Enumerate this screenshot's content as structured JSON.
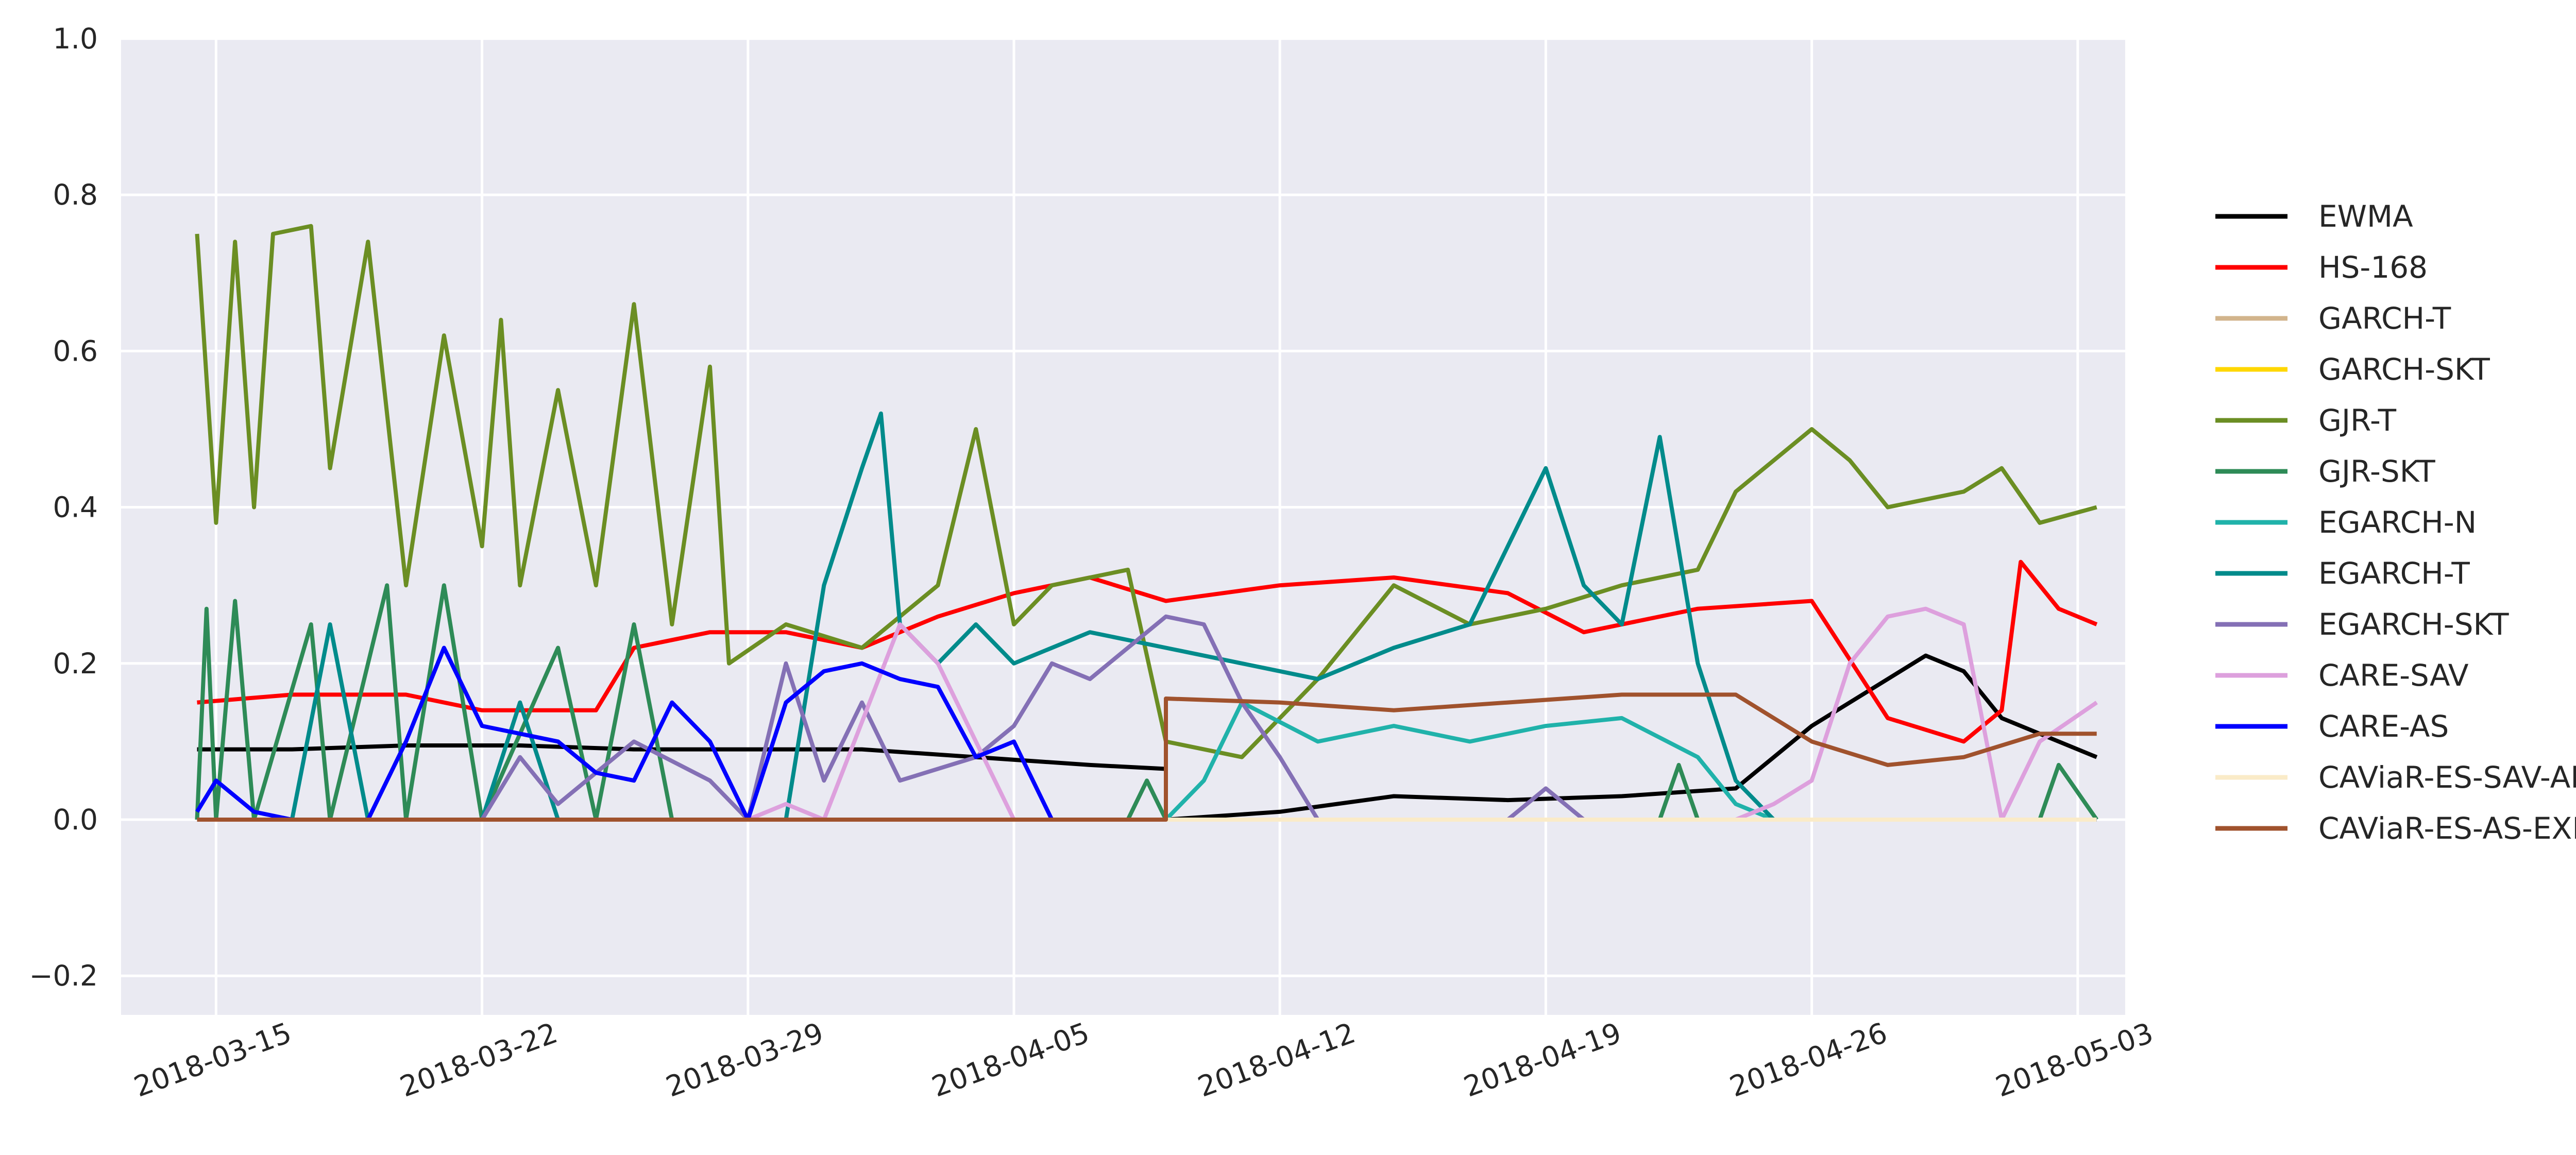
{
  "chart_data": {
    "type": "line",
    "title": "",
    "xlabel": "",
    "ylabel": "",
    "x_range": [
      "2018-03-12T12:00",
      "2018-05-04T06:00"
    ],
    "ylim": [
      -0.25,
      1.0
    ],
    "grid": true,
    "legend_position": "right",
    "x_ticks": [
      "2018-03-15",
      "2018-03-22",
      "2018-03-29",
      "2018-04-05",
      "2018-04-12",
      "2018-04-19",
      "2018-04-26",
      "2018-05-03"
    ],
    "y_ticks": [
      -0.2,
      0.0,
      0.2,
      0.4,
      0.6,
      0.8,
      1.0
    ],
    "y_tick_labels": [
      "−0.2",
      "0.0",
      "0.2",
      "0.4",
      "0.6",
      "0.8",
      "1.0"
    ],
    "series": [
      {
        "name": "EWMA",
        "color": "#000000",
        "points": [
          [
            "2018-03-14T12:00",
            0.09
          ],
          [
            "2018-03-17T00:00",
            0.09
          ],
          [
            "2018-03-20T00:00",
            0.095
          ],
          [
            "2018-03-23T00:00",
            0.095
          ],
          [
            "2018-03-26T00:00",
            0.09
          ],
          [
            "2018-03-29T00:00",
            0.09
          ],
          [
            "2018-04-01T00:00",
            0.09
          ],
          [
            "2018-04-04T00:00",
            0.08
          ],
          [
            "2018-04-07T00:00",
            0.07
          ],
          [
            "2018-04-09T00:00",
            0.065
          ],
          [
            "2018-04-09T00:00",
            0.0
          ],
          [
            "2018-04-12T00:00",
            0.01
          ],
          [
            "2018-04-15T00:00",
            0.03
          ],
          [
            "2018-04-18T00:00",
            0.025
          ],
          [
            "2018-04-21T00:00",
            0.03
          ],
          [
            "2018-04-24T00:00",
            0.04
          ],
          [
            "2018-04-26T00:00",
            0.12
          ],
          [
            "2018-04-28T00:00",
            0.18
          ],
          [
            "2018-04-29T00:00",
            0.21
          ],
          [
            "2018-04-30T00:00",
            0.19
          ],
          [
            "2018-05-01T00:00",
            0.13
          ],
          [
            "2018-05-03T12:00",
            0.08
          ]
        ]
      },
      {
        "name": "HS-168",
        "color": "#ff0000",
        "points": [
          [
            "2018-03-14T12:00",
            0.15
          ],
          [
            "2018-03-17T00:00",
            0.16
          ],
          [
            "2018-03-20T00:00",
            0.16
          ],
          [
            "2018-03-22T00:00",
            0.14
          ],
          [
            "2018-03-25T00:00",
            0.14
          ],
          [
            "2018-03-26T00:00",
            0.22
          ],
          [
            "2018-03-28T00:00",
            0.24
          ],
          [
            "2018-03-30T00:00",
            0.24
          ],
          [
            "2018-04-01T00:00",
            0.22
          ],
          [
            "2018-04-03T00:00",
            0.26
          ],
          [
            "2018-04-05T00:00",
            0.29
          ],
          [
            "2018-04-07T00:00",
            0.31
          ],
          [
            "2018-04-09T00:00",
            0.28
          ],
          [
            "2018-04-12T00:00",
            0.3
          ],
          [
            "2018-04-15T00:00",
            0.31
          ],
          [
            "2018-04-18T00:00",
            0.29
          ],
          [
            "2018-04-20T00:00",
            0.24
          ],
          [
            "2018-04-23T00:00",
            0.27
          ],
          [
            "2018-04-26T00:00",
            0.28
          ],
          [
            "2018-04-28T00:00",
            0.13
          ],
          [
            "2018-04-30T00:00",
            0.1
          ],
          [
            "2018-05-01T00:00",
            0.14
          ],
          [
            "2018-05-01T12:00",
            0.33
          ],
          [
            "2018-05-02T12:00",
            0.27
          ],
          [
            "2018-05-03T12:00",
            0.25
          ]
        ]
      },
      {
        "name": "GARCH-T",
        "color": "#d2b48c",
        "points": [
          [
            "2018-03-14T12:00",
            0.0
          ],
          [
            "2018-05-03T12:00",
            0.0
          ]
        ]
      },
      {
        "name": "GARCH-SKT",
        "color": "#ffd700",
        "points": [
          [
            "2018-03-14T12:00",
            0.0
          ],
          [
            "2018-05-03T12:00",
            0.0
          ]
        ]
      },
      {
        "name": "GJR-T",
        "color": "#6b8e23",
        "points": [
          [
            "2018-03-14T12:00",
            0.75
          ],
          [
            "2018-03-15T00:00",
            0.38
          ],
          [
            "2018-03-15T12:00",
            0.74
          ],
          [
            "2018-03-16T00:00",
            0.4
          ],
          [
            "2018-03-16T12:00",
            0.75
          ],
          [
            "2018-03-17T12:00",
            0.76
          ],
          [
            "2018-03-18T00:00",
            0.45
          ],
          [
            "2018-03-19T00:00",
            0.74
          ],
          [
            "2018-03-20T00:00",
            0.3
          ],
          [
            "2018-03-21T00:00",
            0.62
          ],
          [
            "2018-03-22T00:00",
            0.35
          ],
          [
            "2018-03-22T12:00",
            0.64
          ],
          [
            "2018-03-23T00:00",
            0.3
          ],
          [
            "2018-03-24T00:00",
            0.55
          ],
          [
            "2018-03-25T00:00",
            0.3
          ],
          [
            "2018-03-26T00:00",
            0.66
          ],
          [
            "2018-03-27T00:00",
            0.25
          ],
          [
            "2018-03-28T00:00",
            0.58
          ],
          [
            "2018-03-28T12:00",
            0.2
          ],
          [
            "2018-03-30T00:00",
            0.25
          ],
          [
            "2018-04-01T00:00",
            0.22
          ],
          [
            "2018-04-03T00:00",
            0.3
          ],
          [
            "2018-04-04T00:00",
            0.5
          ],
          [
            "2018-04-05T00:00",
            0.25
          ],
          [
            "2018-04-06T00:00",
            0.3
          ],
          [
            "2018-04-08T00:00",
            0.32
          ],
          [
            "2018-04-09T00:00",
            0.1
          ],
          [
            "2018-04-11T00:00",
            0.08
          ],
          [
            "2018-04-13T00:00",
            0.18
          ],
          [
            "2018-04-15T00:00",
            0.3
          ],
          [
            "2018-04-17T00:00",
            0.25
          ],
          [
            "2018-04-19T00:00",
            0.27
          ],
          [
            "2018-04-21T00:00",
            0.3
          ],
          [
            "2018-04-23T00:00",
            0.32
          ],
          [
            "2018-04-24T00:00",
            0.42
          ],
          [
            "2018-04-26T00:00",
            0.5
          ],
          [
            "2018-04-27T00:00",
            0.46
          ],
          [
            "2018-04-28T00:00",
            0.4
          ],
          [
            "2018-04-30T00:00",
            0.42
          ],
          [
            "2018-05-01T00:00",
            0.45
          ],
          [
            "2018-05-02T00:00",
            0.38
          ],
          [
            "2018-05-03T12:00",
            0.4
          ]
        ]
      },
      {
        "name": "GJR-SKT",
        "color": "#2e8b57",
        "points": [
          [
            "2018-03-14T12:00",
            0.0
          ],
          [
            "2018-03-14T18:00",
            0.27
          ],
          [
            "2018-03-15T00:00",
            0.0
          ],
          [
            "2018-03-15T12:00",
            0.28
          ],
          [
            "2018-03-16T00:00",
            0.0
          ],
          [
            "2018-03-17T12:00",
            0.25
          ],
          [
            "2018-03-18T00:00",
            0.0
          ],
          [
            "2018-03-19T12:00",
            0.3
          ],
          [
            "2018-03-20T00:00",
            0.0
          ],
          [
            "2018-03-21T00:00",
            0.3
          ],
          [
            "2018-03-22T00:00",
            0.0
          ],
          [
            "2018-03-24T00:00",
            0.22
          ],
          [
            "2018-03-25T00:00",
            0.0
          ],
          [
            "2018-03-26T00:00",
            0.25
          ],
          [
            "2018-03-27T00:00",
            0.0
          ],
          [
            "2018-04-08T00:00",
            0.0
          ],
          [
            "2018-04-08T12:00",
            0.05
          ],
          [
            "2018-04-09T00:00",
            0.0
          ],
          [
            "2018-04-22T00:00",
            0.0
          ],
          [
            "2018-04-22T12:00",
            0.07
          ],
          [
            "2018-04-23T00:00",
            0.0
          ],
          [
            "2018-05-02T00:00",
            0.0
          ],
          [
            "2018-05-02T12:00",
            0.07
          ],
          [
            "2018-05-03T12:00",
            0.0
          ]
        ]
      },
      {
        "name": "EGARCH-N",
        "color": "#20b2aa",
        "points": [
          [
            "2018-03-14T12:00",
            0.0
          ],
          [
            "2018-04-09T00:00",
            0.0
          ],
          [
            "2018-04-10T00:00",
            0.05
          ],
          [
            "2018-04-11T00:00",
            0.15
          ],
          [
            "2018-04-13T00:00",
            0.1
          ],
          [
            "2018-04-15T00:00",
            0.12
          ],
          [
            "2018-04-17T00:00",
            0.1
          ],
          [
            "2018-04-19T00:00",
            0.12
          ],
          [
            "2018-04-21T00:00",
            0.13
          ],
          [
            "2018-04-23T00:00",
            0.08
          ],
          [
            "2018-04-24T00:00",
            0.02
          ],
          [
            "2018-04-25T00:00",
            0.0
          ],
          [
            "2018-05-03T12:00",
            0.0
          ]
        ]
      },
      {
        "name": "EGARCH-T",
        "color": "#008b8b",
        "points": [
          [
            "2018-03-14T12:00",
            0.0
          ],
          [
            "2018-03-17T00:00",
            0.0
          ],
          [
            "2018-03-18T00:00",
            0.25
          ],
          [
            "2018-03-19T00:00",
            0.0
          ],
          [
            "2018-03-22T00:00",
            0.0
          ],
          [
            "2018-03-23T00:00",
            0.15
          ],
          [
            "2018-03-24T00:00",
            0.0
          ],
          [
            "2018-03-30T00:00",
            0.0
          ],
          [
            "2018-03-31T00:00",
            0.3
          ],
          [
            "2018-04-01T00:00",
            0.45
          ],
          [
            "2018-04-01T12:00",
            0.52
          ],
          [
            "2018-04-02T00:00",
            0.25
          ],
          [
            "2018-04-03T00:00",
            0.2
          ],
          [
            "2018-04-04T00:00",
            0.25
          ],
          [
            "2018-04-05T00:00",
            0.2
          ],
          [
            "2018-04-07T00:00",
            0.24
          ],
          [
            "2018-04-09T00:00",
            0.22
          ],
          [
            "2018-04-11T00:00",
            0.2
          ],
          [
            "2018-04-13T00:00",
            0.18
          ],
          [
            "2018-04-15T00:00",
            0.22
          ],
          [
            "2018-04-17T00:00",
            0.25
          ],
          [
            "2018-04-19T00:00",
            0.45
          ],
          [
            "2018-04-20T00:00",
            0.3
          ],
          [
            "2018-04-21T00:00",
            0.25
          ],
          [
            "2018-04-22T00:00",
            0.49
          ],
          [
            "2018-04-23T00:00",
            0.2
          ],
          [
            "2018-04-24T00:00",
            0.05
          ],
          [
            "2018-04-25T00:00",
            0.0
          ],
          [
            "2018-05-03T12:00",
            0.0
          ]
        ]
      },
      {
        "name": "EGARCH-SKT",
        "color": "#8470b5",
        "points": [
          [
            "2018-03-14T12:00",
            0.0
          ],
          [
            "2018-03-22T00:00",
            0.0
          ],
          [
            "2018-03-23T00:00",
            0.08
          ],
          [
            "2018-03-24T00:00",
            0.02
          ],
          [
            "2018-03-26T00:00",
            0.1
          ],
          [
            "2018-03-28T00:00",
            0.05
          ],
          [
            "2018-03-29T00:00",
            0.0
          ],
          [
            "2018-03-30T00:00",
            0.2
          ],
          [
            "2018-03-31T00:00",
            0.05
          ],
          [
            "2018-04-01T00:00",
            0.15
          ],
          [
            "2018-04-02T00:00",
            0.05
          ],
          [
            "2018-04-04T00:00",
            0.08
          ],
          [
            "2018-04-05T00:00",
            0.12
          ],
          [
            "2018-04-06T00:00",
            0.2
          ],
          [
            "2018-04-07T00:00",
            0.18
          ],
          [
            "2018-04-09T00:00",
            0.26
          ],
          [
            "2018-04-10T00:00",
            0.25
          ],
          [
            "2018-04-11T00:00",
            0.15
          ],
          [
            "2018-04-12T00:00",
            0.08
          ],
          [
            "2018-04-13T00:00",
            0.0
          ],
          [
            "2018-04-18T00:00",
            0.0
          ],
          [
            "2018-04-19T00:00",
            0.04
          ],
          [
            "2018-04-20T00:00",
            0.0
          ],
          [
            "2018-05-03T12:00",
            0.0
          ]
        ]
      },
      {
        "name": "CARE-SAV",
        "color": "#dda0dd",
        "points": [
          [
            "2018-03-14T12:00",
            0.0
          ],
          [
            "2018-03-29T00:00",
            0.0
          ],
          [
            "2018-03-30T00:00",
            0.02
          ],
          [
            "2018-03-31T00:00",
            0.0
          ],
          [
            "2018-04-02T00:00",
            0.25
          ],
          [
            "2018-04-03T00:00",
            0.2
          ],
          [
            "2018-04-04T00:00",
            0.1
          ],
          [
            "2018-04-05T00:00",
            0.0
          ],
          [
            "2018-04-24T00:00",
            0.0
          ],
          [
            "2018-04-25T00:00",
            0.02
          ],
          [
            "2018-04-26T00:00",
            0.05
          ],
          [
            "2018-04-27T00:00",
            0.2
          ],
          [
            "2018-04-28T00:00",
            0.26
          ],
          [
            "2018-04-29T00:00",
            0.27
          ],
          [
            "2018-04-30T00:00",
            0.25
          ],
          [
            "2018-05-01T00:00",
            0.0
          ],
          [
            "2018-05-02T00:00",
            0.1
          ],
          [
            "2018-05-03T12:00",
            0.15
          ]
        ]
      },
      {
        "name": "CARE-AS",
        "color": "#0000ff",
        "points": [
          [
            "2018-03-14T12:00",
            0.01
          ],
          [
            "2018-03-15T00:00",
            0.05
          ],
          [
            "2018-03-16T00:00",
            0.01
          ],
          [
            "2018-03-17T00:00",
            0.0
          ],
          [
            "2018-03-19T00:00",
            0.0
          ],
          [
            "2018-03-20T00:00",
            0.1
          ],
          [
            "2018-03-21T00:00",
            0.22
          ],
          [
            "2018-03-22T00:00",
            0.12
          ],
          [
            "2018-03-24T00:00",
            0.1
          ],
          [
            "2018-03-25T00:00",
            0.06
          ],
          [
            "2018-03-26T00:00",
            0.05
          ],
          [
            "2018-03-27T00:00",
            0.15
          ],
          [
            "2018-03-28T00:00",
            0.1
          ],
          [
            "2018-03-29T00:00",
            0.0
          ],
          [
            "2018-03-30T00:00",
            0.15
          ],
          [
            "2018-03-31T00:00",
            0.19
          ],
          [
            "2018-04-01T00:00",
            0.2
          ],
          [
            "2018-04-02T00:00",
            0.18
          ],
          [
            "2018-04-03T00:00",
            0.17
          ],
          [
            "2018-04-04T00:00",
            0.08
          ],
          [
            "2018-04-05T00:00",
            0.1
          ],
          [
            "2018-04-06T00:00",
            0.0
          ],
          [
            "2018-05-03T12:00",
            0.0
          ]
        ]
      },
      {
        "name": "CAViaR-ES-SAV-AR",
        "color": "#faebc8",
        "points": [
          [
            "2018-03-14T12:00",
            0.0
          ],
          [
            "2018-05-03T12:00",
            0.0
          ]
        ]
      },
      {
        "name": "CAViaR-ES-AS-EXP",
        "color": "#a0522d",
        "points": [
          [
            "2018-03-14T12:00",
            0.0
          ],
          [
            "2018-04-09T00:00",
            0.0
          ],
          [
            "2018-04-09T00:00",
            0.155
          ],
          [
            "2018-04-12T00:00",
            0.15
          ],
          [
            "2018-04-15T00:00",
            0.14
          ],
          [
            "2018-04-18T00:00",
            0.15
          ],
          [
            "2018-04-21T00:00",
            0.16
          ],
          [
            "2018-04-24T00:00",
            0.16
          ],
          [
            "2018-04-26T00:00",
            0.1
          ],
          [
            "2018-04-28T00:00",
            0.07
          ],
          [
            "2018-04-30T00:00",
            0.08
          ],
          [
            "2018-05-02T00:00",
            0.11
          ],
          [
            "2018-05-03T12:00",
            0.11
          ]
        ]
      }
    ]
  }
}
